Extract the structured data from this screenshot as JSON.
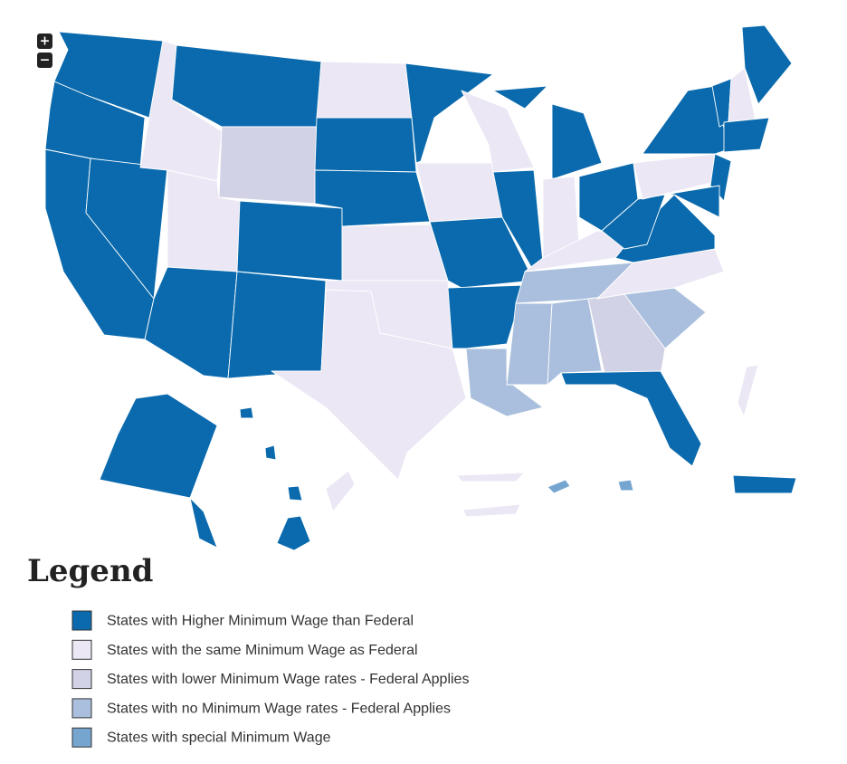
{
  "zoom": {
    "in": "+",
    "out": "−"
  },
  "legend": {
    "title": "Legend",
    "items": [
      {
        "label": "States with Higher Minimum Wage than Federal",
        "color": "#0a6aad"
      },
      {
        "label": "States with the same Minimum Wage as Federal",
        "color": "#ebe7f4"
      },
      {
        "label": "States with lower Minimum Wage rates - Federal Applies",
        "color": "#d2d2e6"
      },
      {
        "label": "States with no Minimum Wage rates - Federal Applies",
        "color": "#a9bfdd"
      },
      {
        "label": "States with special Minimum Wage",
        "color": "#76a6d0"
      }
    ]
  }
}
